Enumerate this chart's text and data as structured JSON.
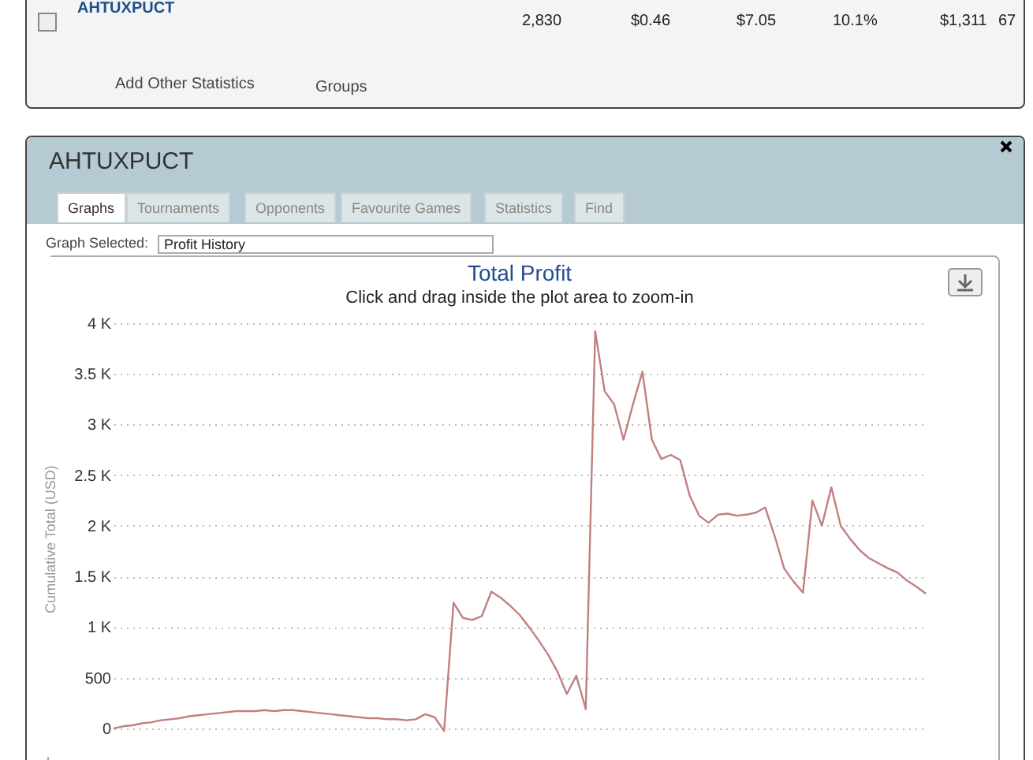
{
  "chart_data": {
    "type": "line",
    "title": "Total Profit",
    "subtitle": "Click and drag inside the plot area to zoom-in",
    "ylabel": "Cumulative Total (USD)",
    "categories": [
      null,
      null,
      null,
      null,
      null,
      null,
      null,
      null,
      null,
      null,
      null,
      null,
      null,
      null,
      null,
      null,
      null,
      null,
      null,
      null,
      null,
      null,
      null,
      null,
      null,
      null,
      null,
      null,
      null,
      null,
      null,
      null,
      null,
      null,
      null,
      null,
      null,
      null,
      null,
      null,
      null,
      null,
      null,
      null,
      null,
      null,
      null,
      null,
      null,
      null,
      null,
      null,
      null,
      null,
      null,
      null,
      null,
      null,
      null,
      null,
      null,
      null,
      null,
      null,
      null,
      null,
      null,
      null,
      null,
      null,
      null,
      null,
      null,
      null,
      null,
      null,
      null,
      null,
      null,
      null,
      null,
      null,
      null,
      null,
      null,
      null,
      null
    ],
    "series": [
      {
        "color": "#c0807f",
        "values": [
          0,
          20,
          30,
          50,
          60,
          80,
          90,
          100,
          120,
          130,
          140,
          150,
          160,
          170,
          170,
          170,
          180,
          170,
          180,
          180,
          170,
          160,
          150,
          140,
          130,
          120,
          110,
          100,
          100,
          90,
          90,
          80,
          90,
          140,
          110,
          -25,
          1240,
          1090,
          1070,
          1110,
          1350,
          1290,
          1210,
          1120,
          1000,
          870,
          730,
          560,
          340,
          520,
          190,
          3920,
          3330,
          3200,
          2850,
          3200,
          3520,
          2850,
          2660,
          2700,
          2650,
          2300,
          2100,
          2030,
          2110,
          2120,
          2100,
          2110,
          2130,
          2180,
          1900,
          1580,
          1450,
          1340,
          2250,
          2000,
          2380,
          2000,
          1870,
          1760,
          1680,
          1630,
          1580,
          1540,
          1460,
          1400,
          1330
        ]
      }
    ],
    "ylim": [
      -250,
      4000
    ],
    "yticks": [
      0,
      500,
      {
        "value": 1000,
        "label": "1 K"
      },
      {
        "value": 1500,
        "label": "1.5 K"
      },
      {
        "value": 2000,
        "label": "2 K"
      },
      {
        "value": 2500,
        "label": "2.5 K"
      },
      {
        "value": 3000,
        "label": "3 K"
      },
      {
        "value": 3500,
        "label": "3.5 K"
      },
      {
        "value": 4000,
        "label": "4 K"
      }
    ],
    "grid": "y",
    "line_style": "solid",
    "marker": "none",
    "tick_labels": "y",
    "annotations": [
      "AHTUXPUCT",
      "2,830",
      "$0.46",
      "$7.05",
      "10.1%",
      "$1,311",
      "67",
      "Add Other Statistics",
      "Groups",
      "AHTUXPUCT",
      "Graphs",
      "Tournaments",
      "Opponents",
      "Favourite Games",
      "Statistics",
      "Find",
      "Graph Selected:",
      "Profit History"
    ]
  }
}
